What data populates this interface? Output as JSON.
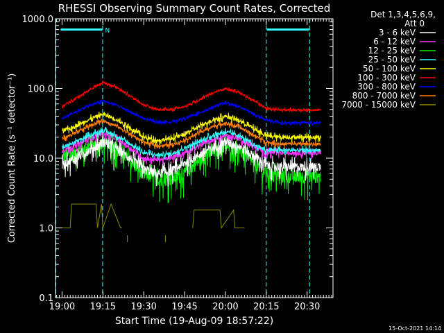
{
  "chart_data": {
    "type": "line",
    "title": "RHESSI Observing Summary Count Rates, Corrected",
    "xlabel": "Start Time (19-Aug-09 18:57:22)",
    "ylabel": "Corrected Count Rate (s⁻¹ detector⁻¹)",
    "y_scale": "log",
    "ylim": [
      0.1,
      1000
    ],
    "xlim_minutes": [
      -2.4,
      99.5
    ],
    "x_ticks": [
      {
        "label": "19:00",
        "minute": 0
      },
      {
        "label": "19:15",
        "minute": 15
      },
      {
        "label": "19:30",
        "minute": 30
      },
      {
        "label": "19:45",
        "minute": 45
      },
      {
        "label": "20:00",
        "minute": 60
      },
      {
        "label": "20:15",
        "minute": 75
      },
      {
        "label": "20:30",
        "minute": 90
      }
    ],
    "y_ticks": [
      "1000.0",
      "100.0",
      "10.0",
      "1.0",
      "0.1"
    ],
    "legend_header": [
      "Det 1,3,4,5,6,9,",
      "Att 0"
    ],
    "legend_position": "outside-right",
    "series": [
      {
        "name": "3 - 6 keV",
        "color": "#ffffff",
        "noise": 0.25,
        "x": [
          0,
          5,
          10,
          15,
          20,
          25,
          30,
          35,
          40,
          45,
          50,
          55,
          60,
          65,
          70,
          75,
          80,
          85,
          90,
          95
        ],
        "y": [
          8,
          10,
          13,
          17,
          14,
          10,
          7,
          6,
          6.5,
          8.5,
          11,
          14,
          17,
          15,
          11,
          8,
          7.5,
          7.5,
          7.5,
          7.5
        ]
      },
      {
        "name": "6 - 12 keV",
        "color": "#ff33ff",
        "noise": 0.12,
        "x": [
          0,
          5,
          10,
          15,
          20,
          25,
          30,
          35,
          40,
          45,
          50,
          55,
          60,
          65,
          70,
          75,
          80,
          85,
          90,
          95
        ],
        "y": [
          13,
          15,
          19,
          23,
          19,
          14,
          10,
          9.5,
          10,
          12,
          15,
          18,
          21,
          19,
          15,
          12,
          12,
          12,
          12,
          12
        ]
      },
      {
        "name": "12 - 25 keV",
        "color": "#00ee00",
        "noise": 0.35,
        "x": [
          0,
          5,
          10,
          15,
          20,
          25,
          30,
          35,
          40,
          45,
          50,
          55,
          60,
          65,
          70,
          75,
          80,
          85,
          90,
          95
        ],
        "y": [
          10,
          12,
          15,
          17,
          14,
          9,
          6,
          5,
          5,
          6,
          9,
          12,
          15,
          13,
          9,
          6,
          5.5,
          5.5,
          5.5,
          5.5
        ]
      },
      {
        "name": "25 - 50 keV",
        "color": "#33ffff",
        "noise": 0.1,
        "x": [
          0,
          5,
          10,
          15,
          20,
          25,
          30,
          35,
          40,
          45,
          50,
          55,
          60,
          65,
          70,
          75,
          80,
          85,
          90,
          95
        ],
        "y": [
          14,
          17,
          21,
          25,
          21,
          16,
          12,
          11,
          11.5,
          14,
          17,
          21,
          24,
          21,
          16,
          13,
          13,
          13,
          13,
          13
        ]
      },
      {
        "name": "50 - 100 keV",
        "color": "#ffff00",
        "noise": 0.1,
        "x": [
          0,
          5,
          10,
          15,
          20,
          25,
          30,
          35,
          40,
          45,
          50,
          55,
          60,
          65,
          70,
          75,
          80,
          85,
          90,
          95
        ],
        "y": [
          24,
          29,
          36,
          43,
          36,
          27,
          20,
          18,
          19,
          22,
          28,
          35,
          40,
          35,
          27,
          21,
          20,
          20,
          20,
          20
        ]
      },
      {
        "name": "100 - 300 keV",
        "color": "#ff0000",
        "noise": 0.05,
        "x": [
          0,
          5,
          10,
          15,
          20,
          25,
          30,
          35,
          40,
          45,
          50,
          55,
          60,
          65,
          70,
          75,
          80,
          85,
          90,
          95
        ],
        "y": [
          55,
          72,
          95,
          122,
          105,
          78,
          58,
          50,
          50,
          55,
          68,
          85,
          100,
          88,
          68,
          52,
          49,
          49,
          49,
          49
        ]
      },
      {
        "name": "300 - 800 keV",
        "color": "#0000ff",
        "noise": 0.05,
        "x": [
          0,
          5,
          10,
          15,
          20,
          25,
          30,
          35,
          40,
          45,
          50,
          55,
          60,
          65,
          70,
          75,
          80,
          85,
          90,
          95
        ],
        "y": [
          37,
          46,
          57,
          66,
          58,
          46,
          37,
          33,
          33,
          37,
          44,
          53,
          62,
          55,
          44,
          35,
          32,
          32,
          32,
          32
        ]
      },
      {
        "name": "800 - 7000 keV",
        "color": "#ff7f00",
        "noise": 0.08,
        "x": [
          0,
          5,
          10,
          15,
          20,
          25,
          30,
          35,
          40,
          45,
          50,
          55,
          60,
          65,
          70,
          75,
          80,
          85,
          90,
          95
        ],
        "y": [
          19,
          23,
          29,
          35,
          29,
          22,
          17,
          15,
          15.5,
          18,
          23,
          28,
          32,
          28,
          22,
          17,
          16,
          16,
          16,
          16
        ]
      },
      {
        "name": "7000 - 15000 keV",
        "color": "#8b8b00",
        "noise": 0,
        "x": [
          -0.5,
          3,
          3.5,
          12.5,
          13,
          14.5,
          15,
          18,
          21.5,
          22,
          25,
          25.5,
          45,
          48,
          48.5,
          58,
          58.5,
          63,
          63.5,
          67,
          67.5
        ],
        "y": [
          1,
          1,
          2.2,
          2.2,
          1,
          2.2,
          1,
          2.2,
          1,
          1,
          null,
          null,
          null,
          1,
          1.8,
          1.8,
          1,
          1.8,
          1,
          1,
          null
        ]
      }
    ],
    "stray_points": [
      {
        "minute": 24,
        "y": 0.7
      },
      {
        "minute": 38,
        "y": 0.7
      }
    ],
    "markers": {
      "night_bars": [
        {
          "from": -0.5,
          "to": 14.8,
          "y": 700
        },
        {
          "from": 75.2,
          "to": 90.8,
          "y": 700
        }
      ],
      "saa_lines": [
        -2.3,
        14.9,
        75.0,
        90.9
      ],
      "flag_label": "N",
      "flag_minute": 15.8,
      "color": "#33ffff"
    },
    "timestamp": "15-Oct-2021 14:14"
  }
}
